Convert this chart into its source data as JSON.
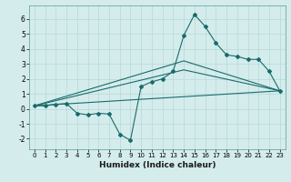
{
  "title": "",
  "xlabel": "Humidex (Indice chaleur)",
  "bg_color": "#d4ecec",
  "grid_color": "#b8d8d8",
  "line_color": "#1a6b6b",
  "xlim": [
    -0.5,
    23.5
  ],
  "ylim": [
    -2.7,
    6.9
  ],
  "xticks": [
    0,
    1,
    2,
    3,
    4,
    5,
    6,
    7,
    8,
    9,
    10,
    11,
    12,
    13,
    14,
    15,
    16,
    17,
    18,
    19,
    20,
    21,
    22,
    23
  ],
  "yticks": [
    -2,
    -1,
    0,
    1,
    2,
    3,
    4,
    5,
    6
  ],
  "curve1_x": [
    0,
    1,
    2,
    3,
    4,
    5,
    6,
    7,
    8,
    9,
    10,
    11,
    12,
    13,
    14,
    15,
    16,
    17,
    18,
    19,
    20,
    21,
    22,
    23
  ],
  "curve1_y": [
    0.2,
    0.2,
    0.3,
    0.35,
    -0.3,
    -0.4,
    -0.3,
    -0.35,
    -1.7,
    -2.1,
    1.5,
    1.8,
    2.0,
    2.5,
    4.9,
    6.3,
    5.5,
    4.4,
    3.6,
    3.5,
    3.3,
    3.3,
    2.5,
    1.2
  ],
  "curve2_x": [
    0,
    23
  ],
  "curve2_y": [
    0.2,
    1.2
  ],
  "curve3_x": [
    0,
    14,
    23
  ],
  "curve3_y": [
    0.2,
    3.2,
    1.2
  ],
  "curve4_x": [
    0,
    14,
    23
  ],
  "curve4_y": [
    0.2,
    2.6,
    1.2
  ]
}
